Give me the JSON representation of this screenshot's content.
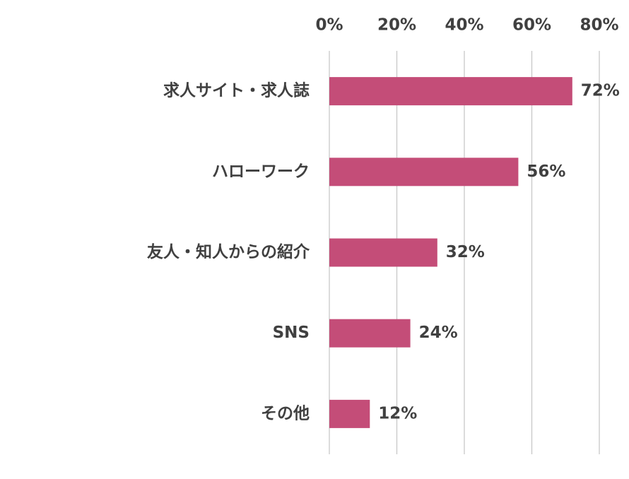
{
  "chart_data": {
    "type": "barh",
    "categories": [
      "求人サイト・求人誌",
      "ハローワーク",
      "友人・知人からの紹介",
      "SNS",
      "その他"
    ],
    "values": [
      72,
      56,
      32,
      24,
      12
    ],
    "value_labels": [
      "72%",
      "56%",
      "32%",
      "24%",
      "12%"
    ],
    "color": "#c44d78",
    "xlim": [
      0,
      80
    ],
    "xticks": [
      {
        "value": 0,
        "label": "0%"
      },
      {
        "value": 20,
        "label": "20%"
      },
      {
        "value": 40,
        "label": "40%"
      },
      {
        "value": 60,
        "label": "60%"
      },
      {
        "value": 80,
        "label": "80%"
      }
    ],
    "grid": true
  }
}
